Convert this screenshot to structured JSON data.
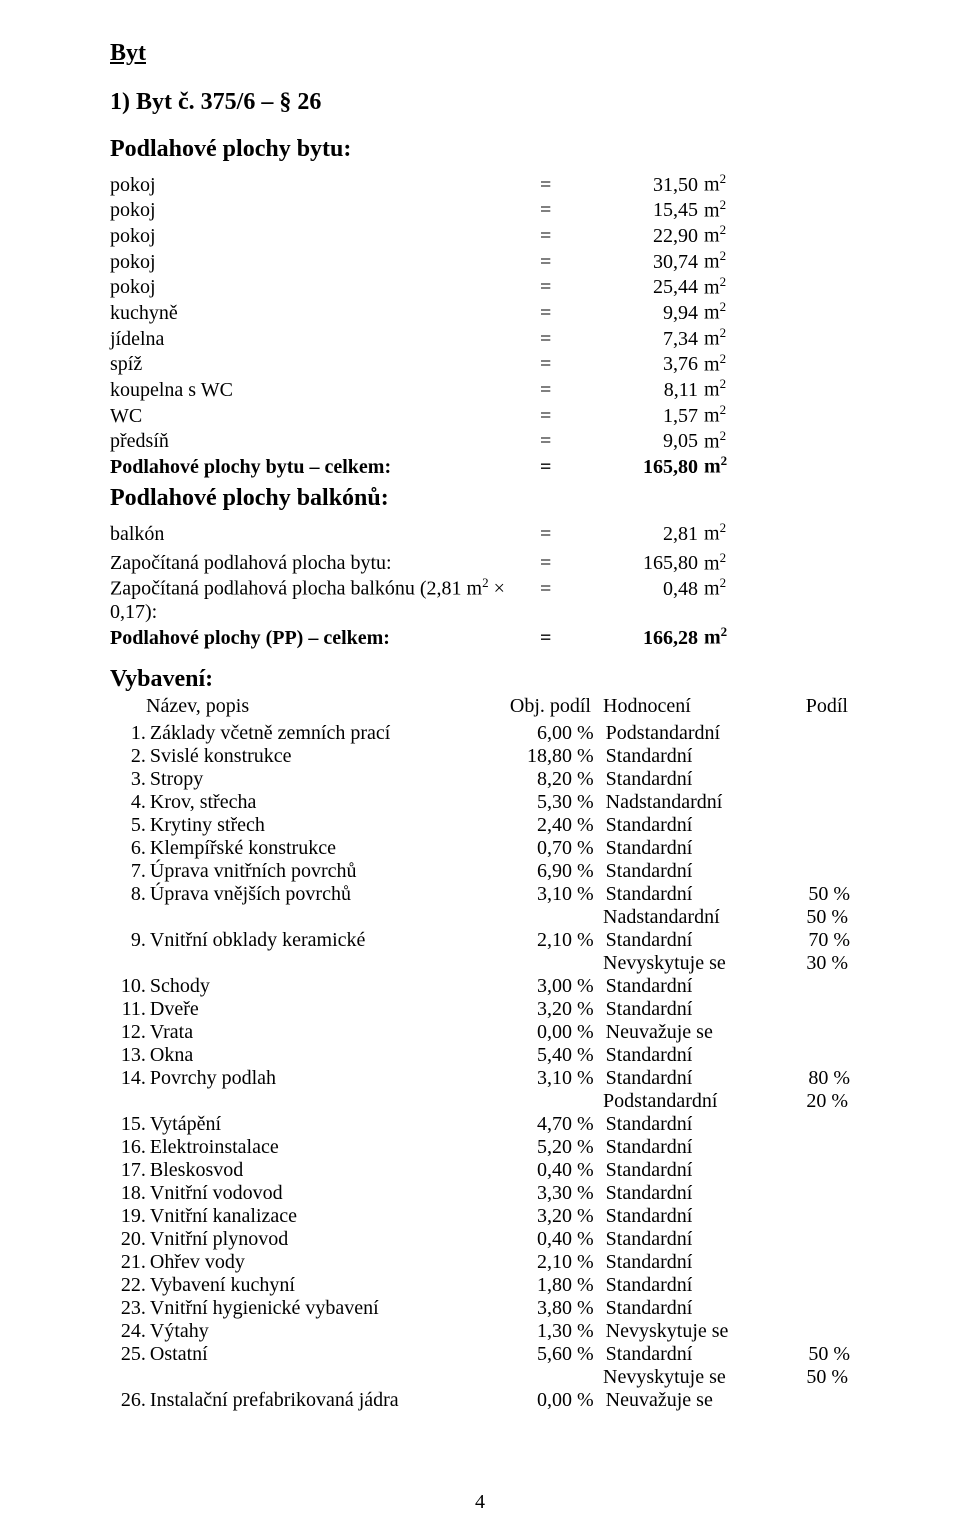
{
  "colors": {
    "background": "#ffffff",
    "text": "#000000"
  },
  "typography": {
    "family": "Times New Roman",
    "body_size_pt": 12,
    "heading_size_pt": 14
  },
  "header": {
    "main_title": "Byt",
    "subtitle": "1)  Byt č. 375/6 – § 26",
    "floor_areas_heading": "Podlahové plochy bytu:",
    "balcony_heading": "Podlahové plochy balkónů:",
    "equipment_heading": "Vybavení:"
  },
  "eq_symbol": "=",
  "unit_base": "m",
  "unit_sup": "2",
  "floor_areas": [
    {
      "label": "pokoj",
      "value": "31,50",
      "bold": false
    },
    {
      "label": "pokoj",
      "value": "15,45",
      "bold": false
    },
    {
      "label": "pokoj",
      "value": "22,90",
      "bold": false
    },
    {
      "label": "pokoj",
      "value": "30,74",
      "bold": false
    },
    {
      "label": "pokoj",
      "value": "25,44",
      "bold": false
    },
    {
      "label": "kuchyně",
      "value": "9,94",
      "bold": false
    },
    {
      "label": "jídelna",
      "value": "7,34",
      "bold": false
    },
    {
      "label": "spíž",
      "value": "3,76",
      "bold": false
    },
    {
      "label": "koupelna s WC",
      "value": "8,11",
      "bold": false
    },
    {
      "label": "WC",
      "value": "1,57",
      "bold": false
    },
    {
      "label": "předsíň",
      "value": "9,05",
      "bold": false
    },
    {
      "label": "Podlahové plochy bytu – celkem:",
      "value": "165,80",
      "bold": true
    }
  ],
  "balcony_row": {
    "label": "balkón",
    "value": "2,81"
  },
  "summary_rows": [
    {
      "label": "Započítaná podlahová plocha bytu:",
      "value": "165,80",
      "bold": false
    },
    {
      "label_prefix": "Započítaná podlahová plocha balkónu (2,81 m",
      "label_sup": "2",
      "label_suffix": " × 0,17):",
      "value": "0,48",
      "bold": false
    },
    {
      "label": "Podlahové plochy (PP) – celkem:",
      "value": "166,28",
      "bold": true
    }
  ],
  "equip_header": {
    "name": "Název, popis",
    "pct": "Obj. podíl",
    "rating": "Hodnocení",
    "share": "Podíl"
  },
  "equipment": [
    {
      "idx": "1.",
      "name": "Základy včetně zemních prací",
      "pct": "6,00 %",
      "rating": "Podstandardní",
      "share": "",
      "extra": []
    },
    {
      "idx": "2.",
      "name": "Svislé konstrukce",
      "pct": "18,80 %",
      "rating": "Standardní",
      "share": "",
      "extra": []
    },
    {
      "idx": "3.",
      "name": "Stropy",
      "pct": "8,20 %",
      "rating": "Standardní",
      "share": "",
      "extra": []
    },
    {
      "idx": "4.",
      "name": "Krov, střecha",
      "pct": "5,30 %",
      "rating": "Nadstandardní",
      "share": "",
      "extra": []
    },
    {
      "idx": "5.",
      "name": "Krytiny střech",
      "pct": "2,40 %",
      "rating": "Standardní",
      "share": "",
      "extra": []
    },
    {
      "idx": "6.",
      "name": "Klempířské konstrukce",
      "pct": "0,70 %",
      "rating": "Standardní",
      "share": "",
      "extra": []
    },
    {
      "idx": "7.",
      "name": "Úprava vnitřních povrchů",
      "pct": "6,90 %",
      "rating": "Standardní",
      "share": "",
      "extra": []
    },
    {
      "idx": "8.",
      "name": "Úprava vnějších povrchů",
      "pct": "3,10 %",
      "rating": "Standardní",
      "share": "50 %",
      "extra": [
        {
          "rating": "Nadstandardní",
          "share": "50 %"
        }
      ]
    },
    {
      "idx": "9.",
      "name": "Vnitřní obklady keramické",
      "pct": "2,10 %",
      "rating": "Standardní",
      "share": "70 %",
      "extra": [
        {
          "rating": "Nevyskytuje se",
          "share": "30 %"
        }
      ]
    },
    {
      "idx": "10.",
      "name": "Schody",
      "pct": "3,00 %",
      "rating": "Standardní",
      "share": "",
      "extra": []
    },
    {
      "idx": "11.",
      "name": "Dveře",
      "pct": "3,20 %",
      "rating": "Standardní",
      "share": "",
      "extra": []
    },
    {
      "idx": "12.",
      "name": "Vrata",
      "pct": "0,00 %",
      "rating": "Neuvažuje se",
      "share": "",
      "extra": []
    },
    {
      "idx": "13.",
      "name": "Okna",
      "pct": "5,40 %",
      "rating": "Standardní",
      "share": "",
      "extra": []
    },
    {
      "idx": "14.",
      "name": "Povrchy podlah",
      "pct": "3,10 %",
      "rating": "Standardní",
      "share": "80 %",
      "extra": [
        {
          "rating": "Podstandardní",
          "share": "20 %"
        }
      ]
    },
    {
      "idx": "15.",
      "name": "Vytápění",
      "pct": "4,70 %",
      "rating": "Standardní",
      "share": "",
      "extra": []
    },
    {
      "idx": "16.",
      "name": "Elektroinstalace",
      "pct": "5,20 %",
      "rating": "Standardní",
      "share": "",
      "extra": []
    },
    {
      "idx": "17.",
      "name": "Bleskosvod",
      "pct": "0,40 %",
      "rating": "Standardní",
      "share": "",
      "extra": []
    },
    {
      "idx": "18.",
      "name": "Vnitřní vodovod",
      "pct": "3,30 %",
      "rating": "Standardní",
      "share": "",
      "extra": []
    },
    {
      "idx": "19.",
      "name": "Vnitřní kanalizace",
      "pct": "3,20 %",
      "rating": "Standardní",
      "share": "",
      "extra": []
    },
    {
      "idx": "20.",
      "name": "Vnitřní plynovod",
      "pct": "0,40 %",
      "rating": "Standardní",
      "share": "",
      "extra": []
    },
    {
      "idx": "21.",
      "name": "Ohřev vody",
      "pct": "2,10 %",
      "rating": "Standardní",
      "share": "",
      "extra": []
    },
    {
      "idx": "22.",
      "name": "Vybavení kuchyní",
      "pct": "1,80 %",
      "rating": "Standardní",
      "share": "",
      "extra": []
    },
    {
      "idx": "23.",
      "name": "Vnitřní hygienické vybavení",
      "pct": "3,80 %",
      "rating": "Standardní",
      "share": "",
      "extra": []
    },
    {
      "idx": "24.",
      "name": "Výtahy",
      "pct": "1,30 %",
      "rating": "Nevyskytuje se",
      "share": "",
      "extra": []
    },
    {
      "idx": "25.",
      "name": "Ostatní",
      "pct": "5,60 %",
      "rating": "Standardní",
      "share": "50 %",
      "extra": [
        {
          "rating": "Nevyskytuje se",
          "share": "50 %"
        }
      ]
    },
    {
      "idx": "26.",
      "name": "Instalační prefabrikovaná jádra",
      "pct": "0,00 %",
      "rating": "Neuvažuje se",
      "share": "",
      "extra": []
    }
  ],
  "page_number": "4"
}
